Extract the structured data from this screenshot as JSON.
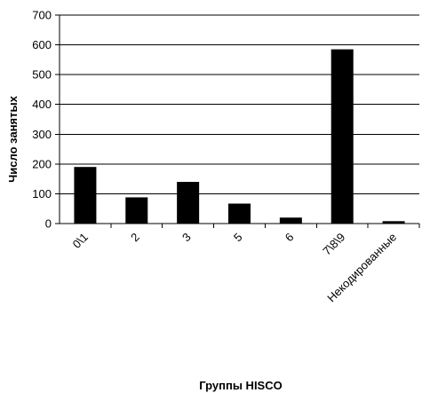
{
  "chart_data": {
    "type": "bar",
    "title": "",
    "xlabel": "Группы HISCO",
    "ylabel": "Число занятых",
    "categories": [
      "0\\1",
      "2",
      "3",
      "5",
      "6",
      "7\\8\\9",
      "Некодированные"
    ],
    "values": [
      190,
      88,
      140,
      67,
      20,
      585,
      8
    ],
    "ylim": [
      0,
      700
    ],
    "yticks": [
      "0",
      "100",
      "200",
      "300",
      "400",
      "500",
      "600",
      "700"
    ],
    "grid": true,
    "legend": "none",
    "bar_color": "#000000",
    "grid_color": "#000000"
  }
}
